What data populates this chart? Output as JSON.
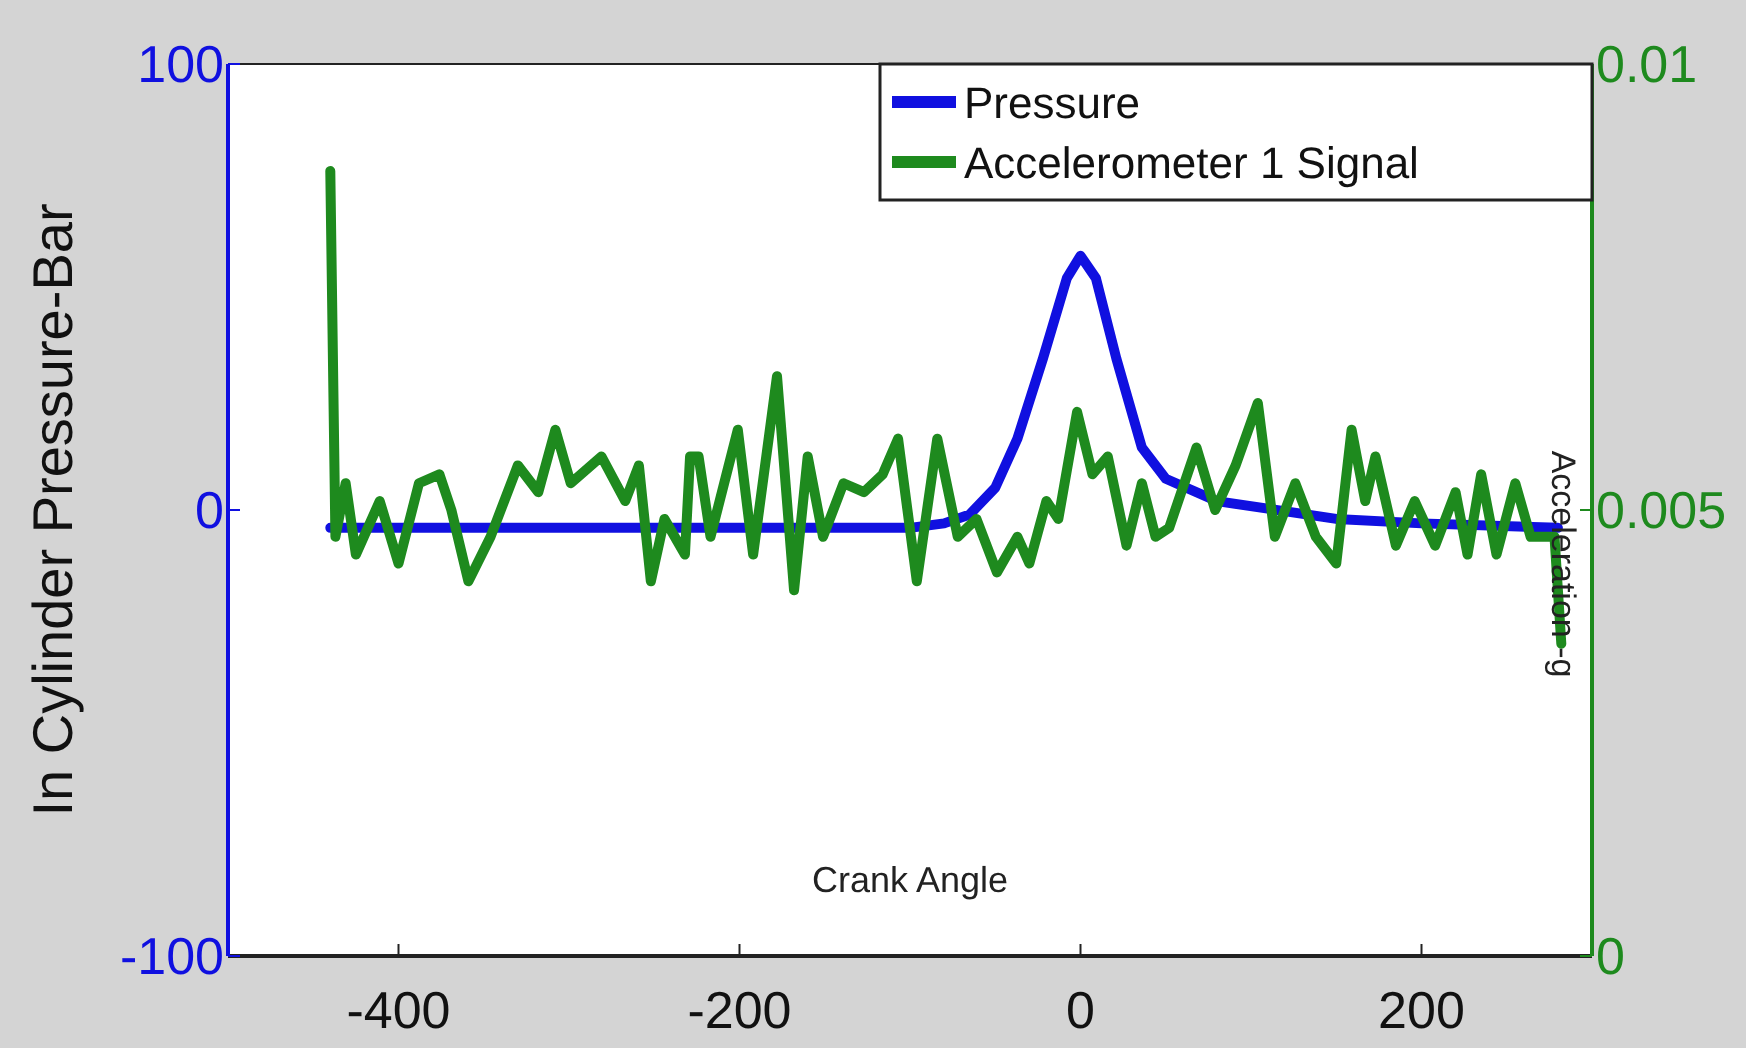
{
  "chart_data": {
    "type": "line",
    "xlabel": "Crank Angle",
    "ylabel": "In Cylinder Pressure-Bar",
    "y2label": "Acceleration -g",
    "xlim": [
      -500,
      300
    ],
    "xticks": [
      -400,
      -200,
      0,
      200
    ],
    "ylim": [
      -100,
      100
    ],
    "yticks": [
      -100,
      0,
      100
    ],
    "y2lim": [
      0,
      0.01
    ],
    "y2ticks": [
      0,
      0.005,
      0.01
    ],
    "legend": "top right",
    "grid": false,
    "line_style": "solid",
    "marker": "none",
    "series": [
      {
        "name": "Pressure",
        "color": "#1010e0",
        "x": [
          -440,
          -300,
          -200,
          -100,
          -80,
          -65,
          -50,
          -37,
          -22,
          -8,
          0,
          9,
          21,
          36,
          50,
          80,
          150,
          200,
          280
        ],
        "values": [
          -4,
          -4,
          -4,
          -4,
          -3,
          -1,
          5,
          16,
          34,
          52,
          57,
          52,
          34,
          14,
          7,
          2,
          -2,
          -3,
          -4
        ]
      },
      {
        "name": "Accelerometer 1 Signal",
        "color": "#1e8a1e",
        "axis": "y2",
        "x": [
          -440,
          -437,
          -431,
          -425,
          -411,
          -400,
          -388,
          -376,
          -369,
          -359,
          -346,
          -330,
          -318,
          -308,
          -299,
          -281,
          -267,
          -259,
          -252,
          -244,
          -232,
          -229,
          -224,
          -217,
          -201,
          -192,
          -178,
          -168,
          -160,
          -151,
          -139,
          -127,
          -116,
          -107,
          -96,
          -84,
          -72,
          -61,
          -49,
          -37,
          -30,
          -20,
          -13,
          -2,
          7,
          16,
          27,
          36,
          44,
          52,
          68,
          79,
          91,
          104,
          114,
          126,
          138,
          150,
          159,
          167,
          173,
          185,
          196,
          208,
          220,
          227,
          235,
          244,
          255,
          264,
          278,
          282
        ],
        "values": [
          0.0088,
          0.0047,
          0.0053,
          0.0045,
          0.0051,
          0.0044,
          0.0053,
          0.0054,
          0.005,
          0.0042,
          0.0047,
          0.0055,
          0.0052,
          0.0059,
          0.0053,
          0.0056,
          0.0051,
          0.0055,
          0.0042,
          0.0049,
          0.0045,
          0.0056,
          0.0056,
          0.0047,
          0.0059,
          0.0045,
          0.0065,
          0.0041,
          0.0056,
          0.0047,
          0.0053,
          0.0052,
          0.0054,
          0.0058,
          0.0042,
          0.0058,
          0.0047,
          0.0049,
          0.0043,
          0.0047,
          0.0044,
          0.0051,
          0.0049,
          0.0061,
          0.0054,
          0.0056,
          0.0046,
          0.0053,
          0.0047,
          0.0048,
          0.0057,
          0.005,
          0.0055,
          0.0062,
          0.0047,
          0.0053,
          0.0047,
          0.0044,
          0.0059,
          0.0051,
          0.0056,
          0.0046,
          0.0051,
          0.0046,
          0.0052,
          0.0045,
          0.0054,
          0.0045,
          0.0053,
          0.0047,
          0.0047,
          0.0035
        ]
      }
    ]
  }
}
